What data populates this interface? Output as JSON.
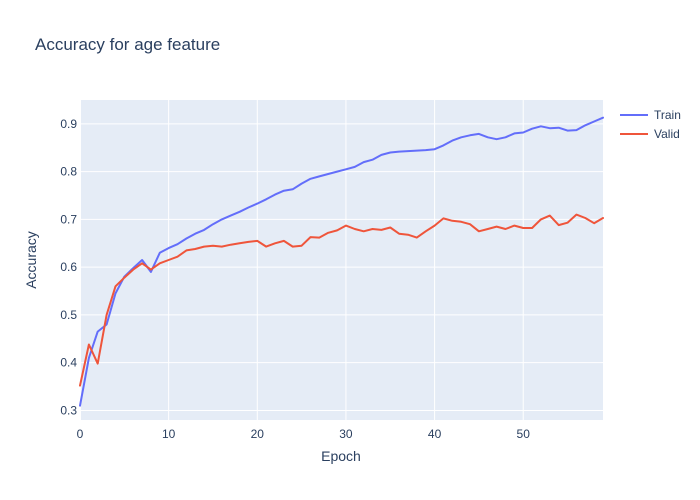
{
  "chart_data": {
    "type": "line",
    "title": "Accuracy for age feature",
    "xlabel": "Epoch",
    "ylabel": "Accuracy",
    "xlim": [
      0,
      59
    ],
    "ylim": [
      0.28,
      0.95
    ],
    "xticks": [
      0,
      10,
      20,
      30,
      40,
      50
    ],
    "yticks": [
      0.3,
      0.4,
      0.5,
      0.6,
      0.7,
      0.8,
      0.9
    ],
    "grid": true,
    "legend_position": "top-right",
    "x": [
      0,
      1,
      2,
      3,
      4,
      5,
      6,
      7,
      8,
      9,
      10,
      11,
      12,
      13,
      14,
      15,
      16,
      17,
      18,
      19,
      20,
      21,
      22,
      23,
      24,
      25,
      26,
      27,
      28,
      29,
      30,
      31,
      32,
      33,
      34,
      35,
      36,
      37,
      38,
      39,
      40,
      41,
      42,
      43,
      44,
      45,
      46,
      47,
      48,
      49,
      50,
      51,
      52,
      53,
      54,
      55,
      56,
      57,
      58,
      59
    ],
    "series": [
      {
        "name": "Train",
        "color": "#636efa",
        "values": [
          0.31,
          0.41,
          0.465,
          0.48,
          0.545,
          0.58,
          0.598,
          0.615,
          0.59,
          0.63,
          0.64,
          0.648,
          0.66,
          0.67,
          0.678,
          0.69,
          0.7,
          0.708,
          0.716,
          0.725,
          0.733,
          0.742,
          0.752,
          0.76,
          0.763,
          0.775,
          0.785,
          0.79,
          0.795,
          0.8,
          0.805,
          0.81,
          0.82,
          0.825,
          0.835,
          0.84,
          0.842,
          0.843,
          0.844,
          0.845,
          0.847,
          0.855,
          0.865,
          0.872,
          0.876,
          0.879,
          0.872,
          0.868,
          0.872,
          0.88,
          0.882,
          0.89,
          0.895,
          0.891,
          0.892,
          0.886,
          0.887,
          0.897,
          0.905,
          0.913
        ]
      },
      {
        "name": "Valid",
        "color": "#ef553b",
        "values": [
          0.352,
          0.438,
          0.398,
          0.5,
          0.56,
          0.578,
          0.595,
          0.608,
          0.595,
          0.608,
          0.615,
          0.622,
          0.635,
          0.638,
          0.643,
          0.645,
          0.643,
          0.647,
          0.65,
          0.653,
          0.655,
          0.643,
          0.65,
          0.655,
          0.643,
          0.645,
          0.663,
          0.662,
          0.672,
          0.677,
          0.687,
          0.68,
          0.675,
          0.68,
          0.678,
          0.683,
          0.67,
          0.668,
          0.662,
          0.675,
          0.687,
          0.702,
          0.697,
          0.695,
          0.69,
          0.675,
          0.68,
          0.685,
          0.68,
          0.687,
          0.682,
          0.682,
          0.7,
          0.708,
          0.688,
          0.693,
          0.71,
          0.703,
          0.692,
          0.703
        ]
      }
    ]
  }
}
